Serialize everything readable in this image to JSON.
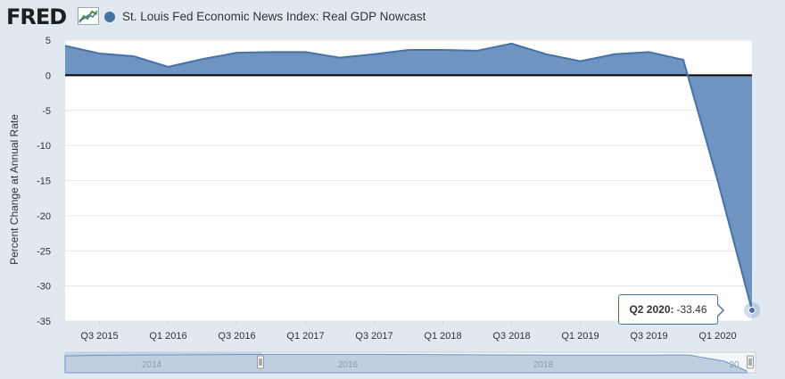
{
  "header": {
    "logo_text": "FRED",
    "logo_icon": "fred-graph-icon",
    "series_title": "St. Louis Fed Economic News Index: Real GDP Nowcast"
  },
  "colors": {
    "series": "#4572a7",
    "area_fill": "#6f94c2",
    "grid": "#e6e6e6",
    "zero_line": "#000000",
    "plot_bg": "#ffffff",
    "page_bg": "#e1e9f0",
    "navigator_fill": "#bfcfe2",
    "navigator_line": "#6f94c2"
  },
  "tooltip": {
    "label": "Q2 2020:",
    "value": "-33.46"
  },
  "navigator": {
    "labels": [
      "2014",
      "2016",
      "2018",
      "20"
    ]
  },
  "chart_data": {
    "type": "area",
    "title": "St. Louis Fed Economic News Index: Real GDP Nowcast",
    "ylabel": "Percent Change at Annual Rate",
    "xlabel": "",
    "ylim": [
      -35,
      5
    ],
    "yticks": [
      5,
      0,
      -5,
      -10,
      -15,
      -20,
      -25,
      -30,
      -35
    ],
    "grid": true,
    "x": [
      "Q2 2015",
      "Q3 2015",
      "Q4 2015",
      "Q1 2016",
      "Q2 2016",
      "Q3 2016",
      "Q4 2016",
      "Q1 2017",
      "Q2 2017",
      "Q3 2017",
      "Q4 2017",
      "Q1 2018",
      "Q2 2018",
      "Q3 2018",
      "Q4 2018",
      "Q1 2019",
      "Q2 2019",
      "Q3 2019",
      "Q4 2019",
      "Q1 2020",
      "Q2 2020"
    ],
    "x_tick_labels": [
      "Q3 2015",
      "Q1 2016",
      "Q3 2016",
      "Q1 2017",
      "Q3 2017",
      "Q1 2018",
      "Q3 2018",
      "Q1 2019",
      "Q3 2019",
      "Q1 2020"
    ],
    "series": [
      {
        "name": "St. Louis Fed Economic News Index: Real GDP Nowcast",
        "values": [
          4.2,
          3.1,
          2.7,
          1.2,
          2.3,
          3.2,
          3.3,
          3.3,
          2.5,
          3.0,
          3.6,
          3.6,
          3.5,
          4.5,
          3.0,
          2.0,
          3.0,
          3.3,
          2.2,
          -15.0,
          -33.46
        ]
      }
    ]
  }
}
